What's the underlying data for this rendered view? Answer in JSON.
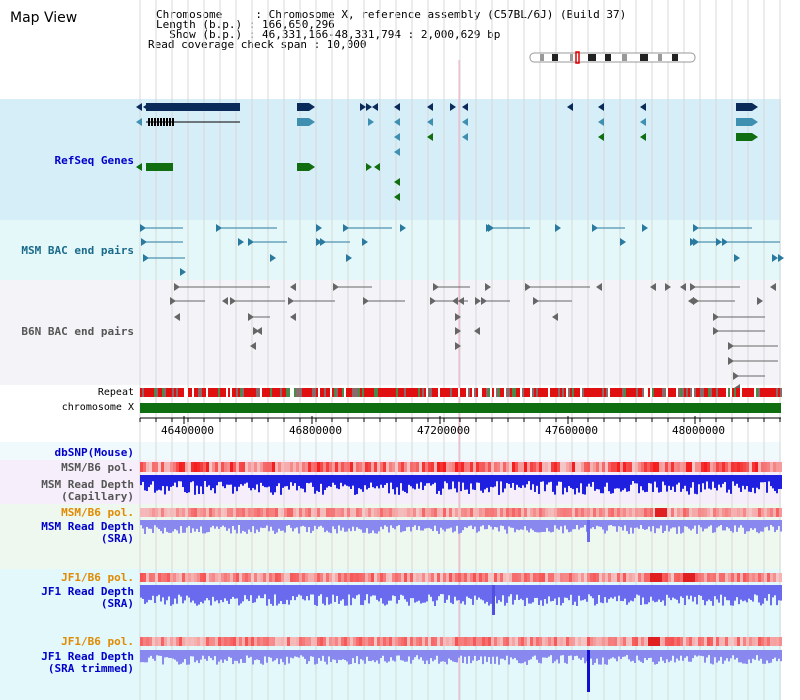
{
  "header": {
    "title": "Map View",
    "chromosome_line": "Chromosome     : Chromosome X, reference assembly (C57BL/6J) (Build 37)",
    "length_line": "Length (b.p.) : 166,650,296",
    "show_line": "  Show (b.p.) : 46,331,166-48,331,794 : 2,000,629 bp",
    "coverage_line": "Read coverage check span : 10,000"
  },
  "tracks": {
    "refseq": "RefSeq Genes",
    "msm_bac": "MSM BAC end pairs",
    "b6n_bac": "B6N BAC end pairs",
    "repeat": "Repeat",
    "chromosome": "chromosome X",
    "dbsnp": "dbSNP(Mouse)",
    "msm_b6_pol": "MSM/B6 pol.",
    "msm_depth_cap_1": "MSM Read Depth",
    "msm_depth_cap_2": "(Capillary)",
    "msm_b6_pol2": "MSM/B6 pol.",
    "msm_depth_sra_1": "MSM Read Depth",
    "msm_depth_sra_2": "(SRA)",
    "jf1_b6_pol": "JF1/B6 pol.",
    "jf1_depth_sra_1": "JF1 Read Depth",
    "jf1_depth_sra_2": "(SRA)",
    "jf1_b6_pol2": "JF1/B6 pol.",
    "jf1_depth_trim_1": "JF1 Read Depth",
    "jf1_depth_trim_2": "(SRA trimmed)"
  },
  "axis": {
    "ticks": [
      "46400000",
      "46800000",
      "47200000",
      "47600000",
      "48000000"
    ]
  },
  "colors": {
    "refseq_bg": "#d6eef8",
    "bac_bg": "#e4f8fa",
    "b6n_bg": "#f6f6fa",
    "gene_dark": "#0a2a5a",
    "gene_teal": "#3f8fb0",
    "gene_green": "#106e10",
    "chromosome": "#0f6e0f",
    "repeat": "#e01010",
    "depth_dark": "#1f1fe0",
    "depth_light": "#8888ee"
  }
}
